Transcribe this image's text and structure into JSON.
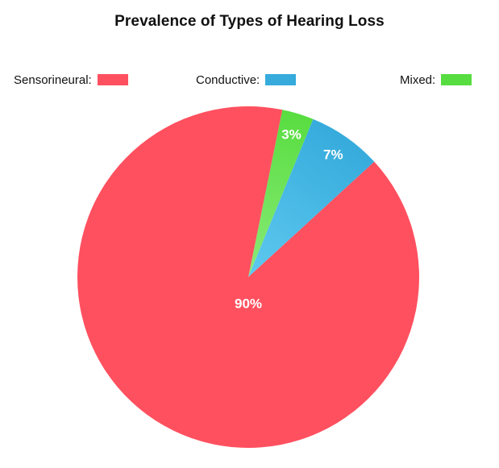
{
  "chart_data": {
    "type": "pie",
    "title": "Prevalence of Types of Hearing Loss",
    "legend_position": "top",
    "slices": [
      {
        "name": "Sensorineural",
        "legend_label": "Sensorineural:",
        "value": 90,
        "label": "90%",
        "color": "#ff505f",
        "color_light": "#ff505f"
      },
      {
        "name": "Conductive",
        "legend_label": "Conductive:",
        "value": 7,
        "label": "7%",
        "color": "#36abdc",
        "color_light": "#5ec9ef"
      },
      {
        "name": "Mixed",
        "legend_label": "Mixed:",
        "value": 3,
        "label": "3%",
        "color": "#58dd40",
        "color_light": "#8aea78"
      }
    ]
  }
}
